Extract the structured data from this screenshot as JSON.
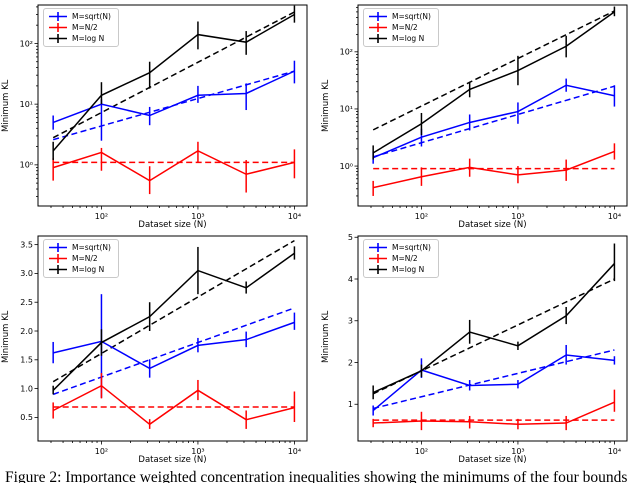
{
  "figure": {
    "caption": "Figure 2: Importance weighted concentration inequalities showing the minimums of the four bounds",
    "background": "#ffffff"
  },
  "legend": {
    "items": [
      "M=sqrt(N)",
      "M=N/2",
      "M=log N"
    ]
  },
  "colors": {
    "blue": "#0000ff",
    "red": "#ff0000",
    "black": "#000000"
  },
  "chart_data": [
    {
      "type": "line",
      "position": "top-left",
      "xlabel": "Dataset size (N)",
      "ylabel": "Minimum KL",
      "xscale": "log",
      "yscale": "log",
      "xlim": [
        22,
        13500
      ],
      "ylim": [
        0.21,
        430
      ],
      "xticks": [
        100,
        1000,
        10000
      ],
      "xtick_labels": [
        "10²",
        "10³",
        "10⁴"
      ],
      "yticks": [
        1,
        10,
        100
      ],
      "ytick_labels": [
        "10⁰",
        "10¹",
        "10²"
      ],
      "legend_position": "upper left",
      "grid": false,
      "x": [
        31.6,
        100,
        316,
        1000,
        3162,
        10000
      ],
      "series": [
        {
          "name": "M=sqrt(N)",
          "color": "#0000ff",
          "style": "solid-errorbar",
          "y": [
            5,
            10,
            6.5,
            14,
            15,
            35
          ],
          "y_err_low": [
            3.8,
            2.5,
            4.5,
            10.5,
            8,
            22
          ],
          "y_err_high": [
            6.5,
            12,
            9,
            20,
            22,
            52
          ]
        },
        {
          "name": "M=N/2",
          "color": "#ff0000",
          "style": "solid-errorbar",
          "y": [
            0.9,
            1.6,
            0.55,
            1.7,
            0.7,
            1.1
          ],
          "y_err_low": [
            0.55,
            0.8,
            0.33,
            1.1,
            0.35,
            0.6
          ],
          "y_err_high": [
            1.3,
            1.9,
            0.95,
            2.4,
            1.2,
            1.8
          ]
        },
        {
          "name": "M=log N",
          "color": "#000000",
          "style": "solid-errorbar",
          "y": [
            1.7,
            14,
            33,
            140,
            105,
            300
          ],
          "y_err_low": [
            1.2,
            10,
            18,
            80,
            65,
            220
          ],
          "y_err_high": [
            2.4,
            23,
            50,
            230,
            160,
            420
          ]
        },
        {
          "name": "M=sqrt(N) trend",
          "color": "#0000ff",
          "style": "dashed",
          "x": [
            31.6,
            10000
          ],
          "y": [
            2.6,
            35
          ]
        },
        {
          "name": "M=N/2 trend",
          "color": "#ff0000",
          "style": "dashed",
          "x": [
            31.6,
            10000
          ],
          "y": [
            1.1,
            1.1
          ]
        },
        {
          "name": "M=log N trend",
          "color": "#000000",
          "style": "dashed",
          "x": [
            31.6,
            10000
          ],
          "y": [
            2.8,
            330
          ]
        }
      ]
    },
    {
      "type": "line",
      "position": "top-right",
      "xlabel": "Dataset size (N)",
      "ylabel": "Minimum KL",
      "xscale": "log",
      "yscale": "log",
      "xlim": [
        22,
        13500
      ],
      "ylim": [
        0.2,
        660
      ],
      "xticks": [
        100,
        1000,
        10000
      ],
      "xtick_labels": [
        "10²",
        "10³",
        "10⁴"
      ],
      "yticks": [
        1,
        10,
        100
      ],
      "ytick_labels": [
        "10⁰",
        "10¹",
        "10²"
      ],
      "legend_position": "upper left",
      "grid": false,
      "x": [
        31.6,
        100,
        316,
        1000,
        3162,
        10000
      ],
      "series": [
        {
          "name": "M=sqrt(N)",
          "color": "#0000ff",
          "style": "solid-errorbar",
          "y": [
            1.4,
            3.2,
            5.8,
            9,
            26,
            17
          ],
          "y_err_low": [
            1.1,
            2.2,
            4.2,
            5.5,
            20,
            11
          ],
          "y_err_high": [
            1.8,
            4.5,
            8,
            13,
            34,
            26
          ]
        },
        {
          "name": "M=N/2",
          "color": "#ff0000",
          "style": "solid-errorbar",
          "y": [
            0.42,
            0.65,
            0.95,
            0.7,
            0.85,
            1.8
          ],
          "y_err_low": [
            0.3,
            0.45,
            0.65,
            0.5,
            0.55,
            1.3
          ],
          "y_err_high": [
            0.55,
            0.95,
            1.35,
            1.0,
            1.3,
            2.5
          ]
        },
        {
          "name": "M=log N",
          "color": "#000000",
          "style": "solid-errorbar",
          "y": [
            1.7,
            5.5,
            22,
            47,
            125,
            500
          ],
          "y_err_low": [
            1.3,
            3.5,
            16,
            26,
            80,
            420
          ],
          "y_err_high": [
            2.3,
            8.5,
            30,
            85,
            190,
            620
          ]
        },
        {
          "name": "M=sqrt(N) trend",
          "color": "#0000ff",
          "style": "dashed",
          "x": [
            31.6,
            10000
          ],
          "y": [
            1.45,
            25
          ]
        },
        {
          "name": "M=N/2 trend",
          "color": "#ff0000",
          "style": "dashed",
          "x": [
            31.6,
            10000
          ],
          "y": [
            0.9,
            0.9
          ]
        },
        {
          "name": "M=log N trend",
          "color": "#000000",
          "style": "dashed",
          "x": [
            31.6,
            10000
          ],
          "y": [
            4.3,
            520
          ]
        }
      ]
    },
    {
      "type": "line",
      "position": "bottom-left",
      "xlabel": "Dataset size (N)",
      "ylabel": "Minimum KL",
      "xscale": "log",
      "yscale": "linear",
      "xlim": [
        22,
        13500
      ],
      "ylim": [
        0.09,
        3.65
      ],
      "xticks": [
        100,
        1000,
        10000
      ],
      "xtick_labels": [
        "10²",
        "10³",
        "10⁴"
      ],
      "yticks": [
        0.5,
        1.0,
        1.5,
        2.0,
        2.5,
        3.0,
        3.5
      ],
      "ytick_labels": [
        "0.5",
        "1.0",
        "1.5",
        "2.0",
        "2.5",
        "3.0",
        "3.5"
      ],
      "legend_position": "upper left",
      "grid": false,
      "x": [
        31.6,
        100,
        316,
        1000,
        3162,
        10000
      ],
      "series": [
        {
          "name": "M=sqrt(N)",
          "color": "#0000ff",
          "style": "solid-errorbar",
          "y": [
            1.62,
            1.82,
            1.35,
            1.75,
            1.85,
            2.15
          ],
          "y_err_low": [
            1.44,
            0.84,
            1.19,
            1.63,
            1.72,
            2.02
          ],
          "y_err_high": [
            1.81,
            2.64,
            1.51,
            1.88,
            1.99,
            2.32
          ]
        },
        {
          "name": "M=N/2",
          "color": "#ff0000",
          "style": "solid-errorbar",
          "y": [
            0.62,
            1.05,
            0.38,
            0.97,
            0.46,
            0.67
          ],
          "y_err_low": [
            0.48,
            0.83,
            0.3,
            0.8,
            0.3,
            0.42
          ],
          "y_err_high": [
            0.76,
            1.27,
            0.47,
            1.15,
            0.62,
            0.95
          ]
        },
        {
          "name": "M=log N",
          "color": "#000000",
          "style": "solid-errorbar",
          "y": [
            0.97,
            1.8,
            2.25,
            3.05,
            2.75,
            3.35
          ],
          "y_err_low": [
            0.9,
            1.57,
            2.0,
            2.64,
            2.65,
            3.24
          ],
          "y_err_high": [
            1.05,
            2.03,
            2.5,
            3.46,
            2.86,
            3.47
          ]
        },
        {
          "name": "M=sqrt(N) trend",
          "color": "#0000ff",
          "style": "dashed",
          "x": [
            31.6,
            10000
          ],
          "y": [
            0.9,
            2.4
          ]
        },
        {
          "name": "M=N/2 trend",
          "color": "#ff0000",
          "style": "dashed",
          "x": [
            31.6,
            10000
          ],
          "y": [
            0.68,
            0.68
          ]
        },
        {
          "name": "M=log N trend",
          "color": "#000000",
          "style": "dashed",
          "x": [
            31.6,
            10000
          ],
          "y": [
            1.12,
            3.57
          ]
        }
      ]
    },
    {
      "type": "line",
      "position": "bottom-right",
      "xlabel": "Dataset size (N)",
      "ylabel": "Minimum KL",
      "xscale": "log",
      "yscale": "linear",
      "xlim": [
        22,
        13500
      ],
      "ylim": [
        0.12,
        5.03
      ],
      "xticks": [
        100,
        1000,
        10000
      ],
      "xtick_labels": [
        "10²",
        "10³",
        "10⁴"
      ],
      "yticks": [
        1,
        2,
        3,
        4,
        5
      ],
      "ytick_labels": [
        "1",
        "2",
        "3",
        "4",
        "5"
      ],
      "legend_position": "upper left",
      "grid": false,
      "x": [
        31.6,
        100,
        316,
        1000,
        3162,
        10000
      ],
      "series": [
        {
          "name": "M=sqrt(N)",
          "color": "#0000ff",
          "style": "solid-errorbar",
          "y": [
            0.85,
            1.82,
            1.45,
            1.48,
            2.18,
            2.05
          ],
          "y_err_low": [
            0.73,
            1.63,
            1.33,
            1.38,
            1.95,
            1.95
          ],
          "y_err_high": [
            0.97,
            2.1,
            1.58,
            1.58,
            2.42,
            2.15
          ]
        },
        {
          "name": "M=N/2",
          "color": "#ff0000",
          "style": "solid-errorbar",
          "y": [
            0.55,
            0.6,
            0.58,
            0.52,
            0.55,
            1.05
          ],
          "y_err_low": [
            0.45,
            0.38,
            0.42,
            0.4,
            0.38,
            0.82
          ],
          "y_err_high": [
            0.65,
            0.82,
            0.72,
            0.65,
            0.72,
            1.35
          ]
        },
        {
          "name": "M=log N",
          "color": "#000000",
          "style": "solid-errorbar",
          "y": [
            1.28,
            1.8,
            2.73,
            2.4,
            3.12,
            4.37
          ],
          "y_err_low": [
            1.12,
            1.65,
            2.45,
            2.3,
            2.92,
            3.95
          ],
          "y_err_high": [
            1.45,
            1.95,
            3.02,
            2.5,
            3.33,
            4.85
          ]
        },
        {
          "name": "M=sqrt(N) trend",
          "color": "#0000ff",
          "style": "dashed",
          "x": [
            31.6,
            10000
          ],
          "y": [
            0.9,
            2.3
          ]
        },
        {
          "name": "M=N/2 trend",
          "color": "#ff0000",
          "style": "dashed",
          "x": [
            31.6,
            10000
          ],
          "y": [
            0.62,
            0.62
          ]
        },
        {
          "name": "M=log N trend",
          "color": "#000000",
          "style": "dashed",
          "x": [
            31.6,
            10000
          ],
          "y": [
            1.25,
            4.0
          ]
        }
      ]
    }
  ]
}
